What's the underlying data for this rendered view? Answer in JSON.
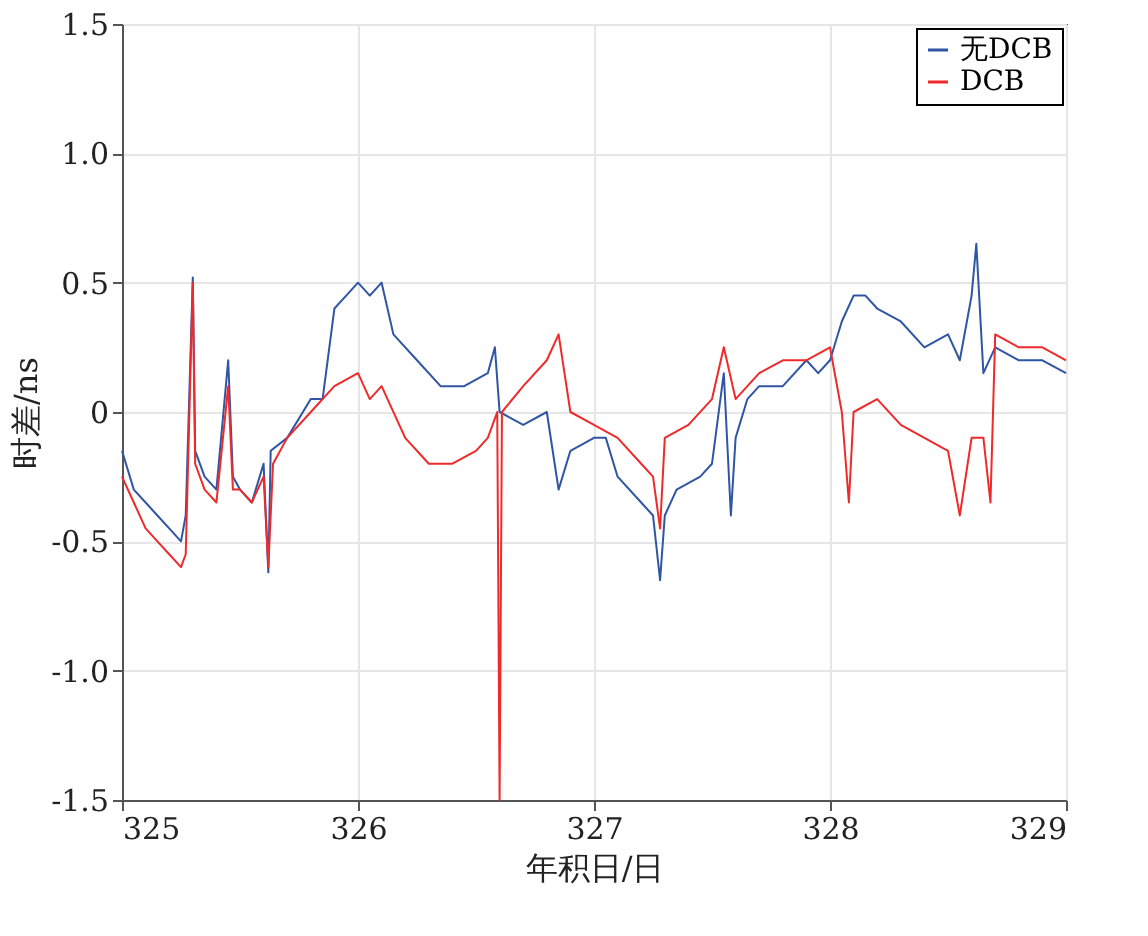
{
  "chart_data": {
    "type": "line",
    "xlabel": "年积日/日",
    "ylabel": "时差/ns",
    "xlim": [
      325,
      329
    ],
    "xticks": [
      325,
      326,
      327,
      328,
      329
    ],
    "ylim": [
      -1.5,
      1.5
    ],
    "yticks": [
      {
        "value": -1.5,
        "label": "-1.5"
      },
      {
        "value": -1,
        "label": "-1.0"
      },
      {
        "value": -0.5,
        "label": "-0.5"
      },
      0,
      0.5,
      {
        "value": 1,
        "label": "1.0"
      },
      1.5
    ],
    "grid": true,
    "legend": "top right",
    "line_style": "solid",
    "marker": "none",
    "series": [
      {
        "name": "无DCB",
        "color": "#2f55a4",
        "x": [
          325.0,
          325.05,
          325.1,
          325.15,
          325.2,
          325.25,
          325.27,
          325.3,
          325.31,
          325.35,
          325.4,
          325.45,
          325.47,
          325.5,
          325.55,
          325.6,
          325.62,
          325.63,
          325.7,
          325.8,
          325.85,
          325.9,
          325.95,
          326.0,
          326.05,
          326.1,
          326.15,
          326.25,
          326.35,
          326.45,
          326.55,
          326.58,
          326.6,
          326.7,
          326.8,
          326.85,
          326.9,
          327.0,
          327.05,
          327.1,
          327.2,
          327.25,
          327.28,
          327.3,
          327.35,
          327.45,
          327.5,
          327.55,
          327.58,
          327.6,
          327.65,
          327.7,
          327.8,
          327.9,
          327.95,
          328.0,
          328.05,
          328.1,
          328.15,
          328.2,
          328.3,
          328.4,
          328.5,
          328.55,
          328.6,
          328.62,
          328.65,
          328.7,
          328.8,
          328.9,
          329.0
        ],
        "values": [
          -0.15,
          -0.3,
          -0.35,
          -0.4,
          -0.45,
          -0.5,
          -0.4,
          0.52,
          -0.15,
          -0.25,
          -0.3,
          0.2,
          -0.25,
          -0.3,
          -0.35,
          -0.2,
          -0.62,
          -0.15,
          -0.1,
          0.05,
          0.05,
          0.4,
          0.45,
          0.5,
          0.45,
          0.5,
          0.3,
          0.2,
          0.1,
          0.1,
          0.15,
          0.25,
          0.0,
          -0.05,
          0.0,
          -0.3,
          -0.15,
          -0.1,
          -0.1,
          -0.25,
          -0.35,
          -0.4,
          -0.65,
          -0.4,
          -0.3,
          -0.25,
          -0.2,
          0.15,
          -0.4,
          -0.1,
          0.05,
          0.1,
          0.1,
          0.2,
          0.15,
          0.2,
          0.35,
          0.45,
          0.45,
          0.4,
          0.35,
          0.25,
          0.3,
          0.2,
          0.45,
          0.65,
          0.15,
          0.25,
          0.2,
          0.2,
          0.15
        ]
      },
      {
        "name": "DCB",
        "color": "#ee2a2a",
        "x": [
          325.0,
          325.05,
          325.1,
          325.15,
          325.2,
          325.25,
          325.27,
          325.3,
          325.31,
          325.35,
          325.4,
          325.45,
          325.47,
          325.5,
          325.55,
          325.6,
          325.62,
          325.64,
          325.7,
          325.8,
          325.9,
          326.0,
          326.05,
          326.1,
          326.2,
          326.3,
          326.4,
          326.5,
          326.55,
          326.59,
          326.6,
          326.61,
          326.7,
          326.8,
          326.85,
          326.9,
          327.0,
          327.1,
          327.2,
          327.25,
          327.28,
          327.3,
          327.4,
          327.5,
          327.55,
          327.6,
          327.7,
          327.8,
          327.9,
          328.0,
          328.05,
          328.08,
          328.1,
          328.2,
          328.3,
          328.4,
          328.5,
          328.55,
          328.6,
          328.65,
          328.68,
          328.7,
          328.8,
          328.9,
          329.0
        ],
        "values": [
          -0.25,
          -0.35,
          -0.45,
          -0.5,
          -0.55,
          -0.6,
          -0.55,
          0.5,
          -0.2,
          -0.3,
          -0.35,
          0.1,
          -0.3,
          -0.3,
          -0.35,
          -0.25,
          -0.6,
          -0.2,
          -0.1,
          0.0,
          0.1,
          0.15,
          0.05,
          0.1,
          -0.1,
          -0.2,
          -0.2,
          -0.15,
          -0.1,
          0.0,
          -1.5,
          0.0,
          0.1,
          0.2,
          0.3,
          0.0,
          -0.05,
          -0.1,
          -0.2,
          -0.25,
          -0.45,
          -0.1,
          -0.05,
          0.05,
          0.25,
          0.05,
          0.15,
          0.2,
          0.2,
          0.25,
          0.0,
          -0.35,
          0.0,
          0.05,
          -0.05,
          -0.1,
          -0.15,
          -0.4,
          -0.1,
          -0.1,
          -0.35,
          0.3,
          0.25,
          0.25,
          0.2
        ]
      }
    ]
  }
}
